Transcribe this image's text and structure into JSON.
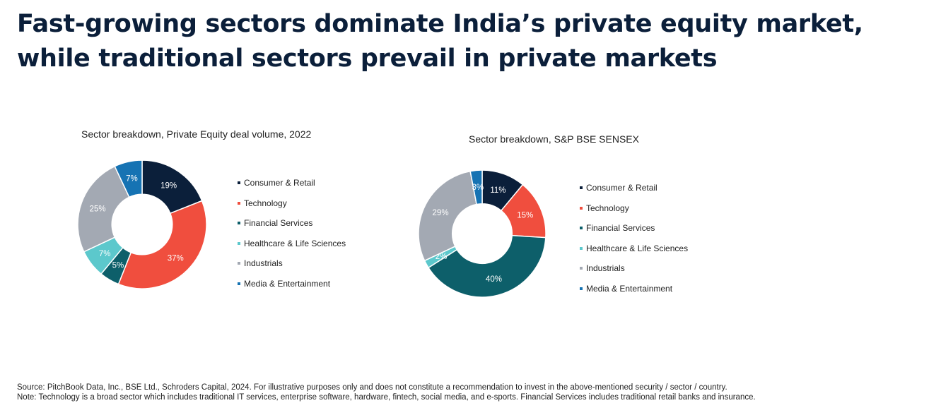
{
  "headline": "Fast-growing sectors dominate India’s private equity market, while traditional sectors prevail in private markets",
  "colors": {
    "consumer_retail": "#0b1f3a",
    "technology": "#f04e3e",
    "financial_services": "#0d5f6a",
    "healthcare": "#5cc8cc",
    "industrials": "#a3a9b3",
    "media": "#1673b3"
  },
  "chart_data": [
    {
      "type": "pie",
      "title": "Sector breakdown, Private Equity deal volume, 2022",
      "categories": [
        "Consumer & Retail",
        "Technology",
        "Financial Services",
        "Healthcare & Life Sciences",
        "Industrials",
        "Media & Entertainment"
      ],
      "values": [
        19,
        37,
        5,
        7,
        25,
        7
      ],
      "labels": [
        "19%",
        "37%",
        "5%",
        "7%",
        "25%",
        "7%"
      ],
      "colors": [
        "#0b1f3a",
        "#f04e3e",
        "#0d5f6a",
        "#5cc8cc",
        "#a3a9b3",
        "#1673b3"
      ],
      "legend_position": "right"
    },
    {
      "type": "pie",
      "title": "Sector breakdown, S&P BSE SENSEX",
      "categories": [
        "Consumer & Retail",
        "Technology",
        "Financial Services",
        "Healthcare & Life Sciences",
        "Industrials",
        "Media & Entertainment"
      ],
      "values": [
        11,
        15,
        40,
        2,
        29,
        3
      ],
      "labels": [
        "11%",
        "15%",
        "40%",
        "2%",
        "29%",
        "3%"
      ],
      "colors": [
        "#0b1f3a",
        "#f04e3e",
        "#0d5f6a",
        "#5cc8cc",
        "#a3a9b3",
        "#1673b3"
      ],
      "legend_position": "right"
    }
  ],
  "footnotes": {
    "source": "Source: PitchBook Data, Inc., BSE Ltd., Schroders Capital, 2024. For illustrative purposes only and does not constitute a recommendation to invest in the above-mentioned security / sector / country.",
    "note": "Note: Technology is a broad sector which includes traditional IT services, enterprise software, hardware, fintech, social media, and e-sports. Financial Services includes traditional retail banks and insurance."
  }
}
